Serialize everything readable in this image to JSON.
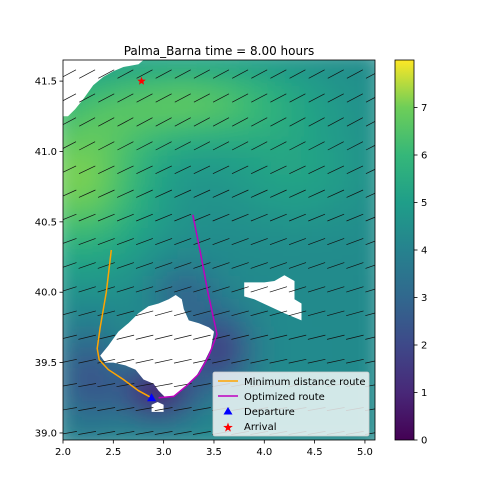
{
  "chart_data": {
    "type": "heatmap",
    "title": "Palma_Barna time = 8.00 hours",
    "xlabel": "",
    "ylabel": "",
    "xlim": [
      2.0,
      5.1
    ],
    "ylim": [
      38.95,
      41.65
    ],
    "x_ticks": [
      "2.0",
      "2.5",
      "3.0",
      "3.5",
      "4.0",
      "4.5",
      "5.0"
    ],
    "y_ticks": [
      "39.0",
      "39.5",
      "40.0",
      "40.5",
      "41.0",
      "41.5"
    ],
    "colorbar": {
      "colormap": "viridis",
      "range": [
        0,
        8
      ],
      "ticks": [
        "0",
        "1",
        "2",
        "3",
        "4",
        "5",
        "6",
        "7"
      ]
    },
    "legend": {
      "placement": "lower-right",
      "entries": [
        {
          "label": "Minimum distance route",
          "color": "#ffa500",
          "marker": "line"
        },
        {
          "label": "Optimized route",
          "color": "#bf00bf",
          "marker": "line"
        },
        {
          "label": "Departure",
          "color": "#0000ff",
          "marker": "triangle"
        },
        {
          "label": "Arrival",
          "color": "#ff0000",
          "marker": "star"
        }
      ]
    },
    "series": [
      {
        "name": "Minimum distance route",
        "color": "#ffa500",
        "points": [
          [
            2.48,
            40.3
          ],
          [
            2.43,
            40.0
          ],
          [
            2.37,
            39.75
          ],
          [
            2.34,
            39.6
          ],
          [
            2.36,
            39.52
          ],
          [
            2.45,
            39.45
          ],
          [
            2.6,
            39.38
          ],
          [
            2.75,
            39.3
          ],
          [
            2.88,
            39.25
          ]
        ]
      },
      {
        "name": "Optimized route",
        "color": "#bf00bf",
        "points": [
          [
            3.29,
            40.55
          ],
          [
            3.36,
            40.3
          ],
          [
            3.44,
            40.0
          ],
          [
            3.5,
            39.8
          ],
          [
            3.53,
            39.7
          ],
          [
            3.45,
            39.55
          ],
          [
            3.35,
            39.42
          ],
          [
            3.22,
            39.33
          ],
          [
            3.1,
            39.26
          ],
          [
            2.95,
            39.25
          ]
        ]
      }
    ],
    "departure": [
      2.88,
      39.25
    ],
    "arrival": [
      2.78,
      41.5
    ]
  }
}
